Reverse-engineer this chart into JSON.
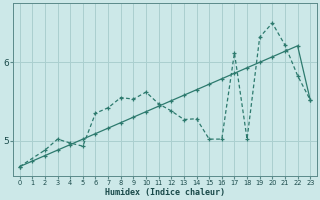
{
  "xlabel": "Humidex (Indice chaleur)",
  "bg_color": "#cce8e8",
  "line_color": "#2d7a6e",
  "grid_color": "#aacfcf",
  "xlim": [
    -0.5,
    23.5
  ],
  "ylim": [
    4.55,
    6.75
  ],
  "yticks": [
    5,
    6
  ],
  "xticks": [
    0,
    1,
    2,
    3,
    4,
    5,
    6,
    7,
    8,
    9,
    10,
    11,
    12,
    13,
    14,
    15,
    16,
    17,
    18,
    19,
    20,
    21,
    22,
    23
  ],
  "line1_x": [
    0,
    1,
    2,
    3,
    4,
    5,
    6,
    7,
    8,
    9,
    10,
    11,
    12,
    13,
    14,
    15,
    16,
    17,
    18,
    19,
    20,
    21,
    22,
    23
  ],
  "line1_y": [
    4.67,
    4.74,
    4.81,
    4.88,
    4.95,
    5.02,
    5.09,
    5.16,
    5.23,
    5.3,
    5.37,
    5.44,
    5.51,
    5.58,
    5.65,
    5.72,
    5.79,
    5.86,
    5.93,
    6.0,
    6.07,
    6.14,
    6.21,
    5.52
  ],
  "line2_x": [
    0,
    2,
    3,
    4,
    5,
    6,
    7,
    8,
    9,
    10,
    11,
    12,
    13,
    14,
    15,
    16,
    17,
    18,
    19,
    20,
    21,
    22,
    23
  ],
  "line2_y": [
    4.67,
    4.88,
    5.02,
    4.97,
    4.93,
    5.35,
    5.42,
    5.55,
    5.53,
    5.62,
    5.47,
    5.38,
    5.27,
    5.28,
    5.02,
    5.02,
    6.12,
    5.02,
    6.32,
    6.5,
    6.22,
    5.83,
    5.52
  ]
}
